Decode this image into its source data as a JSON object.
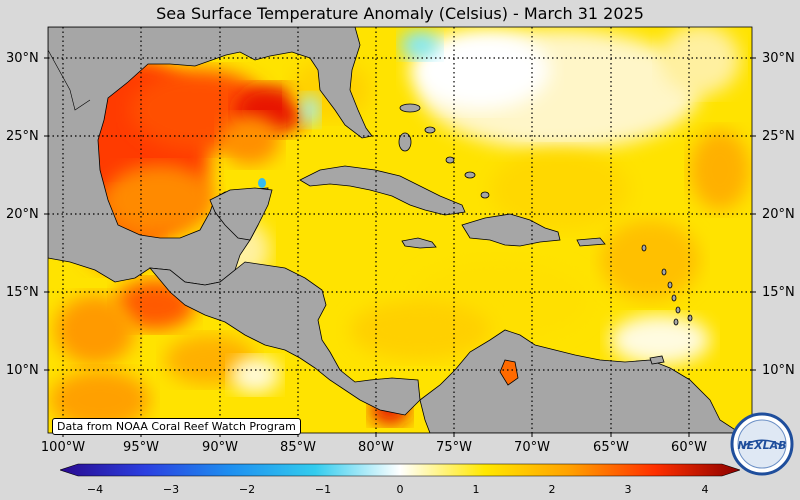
{
  "title": "Sea Surface Temperature Anomaly (Celsius) - March 31 2025",
  "credit": "Data from NOAA Coral Reef Watch Program",
  "logo_text": "NEXLAB",
  "lat_labels": [
    "30°N",
    "25°N",
    "20°N",
    "15°N",
    "10°N"
  ],
  "lon_labels": [
    "100°W",
    "95°W",
    "90°W",
    "85°W",
    "80°W",
    "75°W",
    "70°W",
    "65°W",
    "60°W"
  ],
  "colorbar": {
    "ticks": [
      "−4",
      "−3",
      "−2",
      "−1",
      "0",
      "1",
      "2",
      "3",
      "4"
    ],
    "range": [
      -4,
      4
    ],
    "colors": [
      "#2a0a8f",
      "#2b3fe0",
      "#1e8ff0",
      "#33ccee",
      "#ffffff",
      "#ffe800",
      "#ffa000",
      "#ff3000",
      "#8b0000"
    ]
  },
  "colors": {
    "land": "#a6a6a6",
    "frame": "#d9d9d9",
    "warm": "#ff6a00",
    "neutral": "#fff3b0",
    "cool": "#7fe8ff"
  }
}
